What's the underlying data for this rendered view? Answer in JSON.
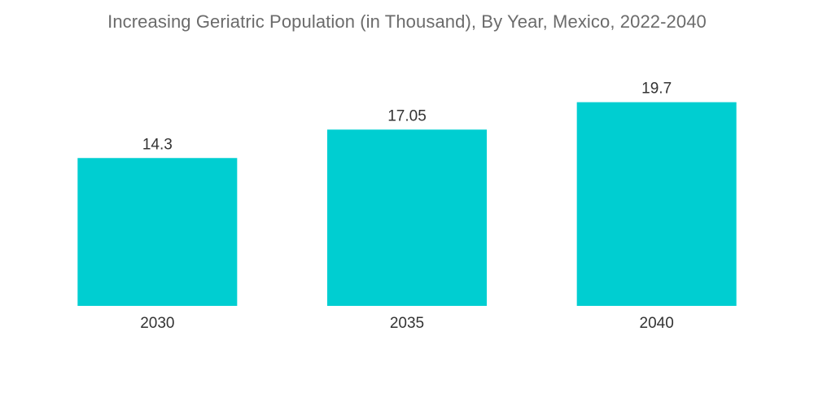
{
  "chart_data": {
    "type": "bar",
    "title": "Increasing Geriatric Population (in Thousand), By Year, Mexico, 2022-2040",
    "categories": [
      "2030",
      "2035",
      "2040"
    ],
    "values": [
      14.3,
      17.05,
      19.7
    ],
    "value_labels": [
      "14.3",
      "17.05",
      "19.7"
    ],
    "xlabel": "",
    "ylabel": "",
    "ylim": [
      0,
      20.3
    ],
    "grid": false,
    "legend": "none",
    "bar_color": "#00CED1"
  }
}
